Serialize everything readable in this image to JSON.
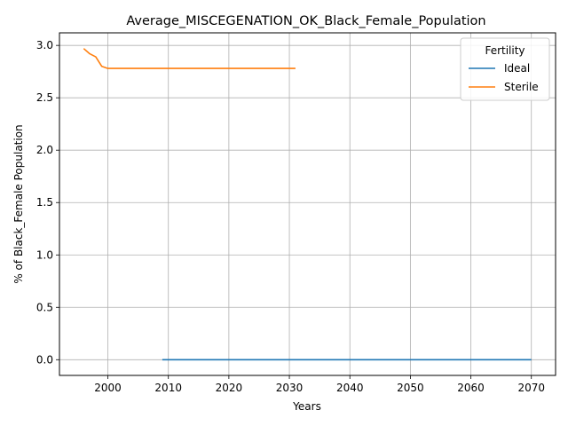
{
  "chart_data": {
    "type": "line",
    "title": "Average_MISCEGENATION_OK_Black_Female_Population",
    "xlabel": "Years",
    "ylabel": "% of Black_Female Population",
    "xlim": [
      1992,
      2074
    ],
    "ylim": [
      -0.15,
      3.12
    ],
    "xticks": [
      2000,
      2010,
      2020,
      2030,
      2040,
      2050,
      2060,
      2070
    ],
    "yticks": [
      0.0,
      0.5,
      1.0,
      1.5,
      2.0,
      2.5,
      3.0
    ],
    "xtick_labels": [
      "2000",
      "2010",
      "2020",
      "2030",
      "2040",
      "2050",
      "2060",
      "2070"
    ],
    "ytick_labels": [
      "0.0",
      "0.5",
      "1.0",
      "1.5",
      "2.0",
      "2.5",
      "3.0"
    ],
    "grid": true,
    "legend": {
      "title": "Fertility",
      "position": "top-right"
    },
    "series": [
      {
        "name": "Ideal",
        "color": "#1f77b4",
        "points": [
          [
            2009,
            0.0
          ],
          [
            2020,
            0.0
          ],
          [
            2030,
            0.0
          ],
          [
            2040,
            0.0
          ],
          [
            2050,
            0.0
          ],
          [
            2060,
            0.0
          ],
          [
            2070,
            0.0
          ]
        ]
      },
      {
        "name": "Sterile",
        "color": "#ff7f0e",
        "points": [
          [
            1996,
            2.97
          ],
          [
            1997,
            2.92
          ],
          [
            1998,
            2.89
          ],
          [
            1999,
            2.8
          ],
          [
            2000,
            2.78
          ],
          [
            2005,
            2.78
          ],
          [
            2010,
            2.78
          ],
          [
            2015,
            2.78
          ],
          [
            2020,
            2.78
          ],
          [
            2025,
            2.78
          ],
          [
            2031,
            2.78
          ]
        ]
      }
    ]
  }
}
